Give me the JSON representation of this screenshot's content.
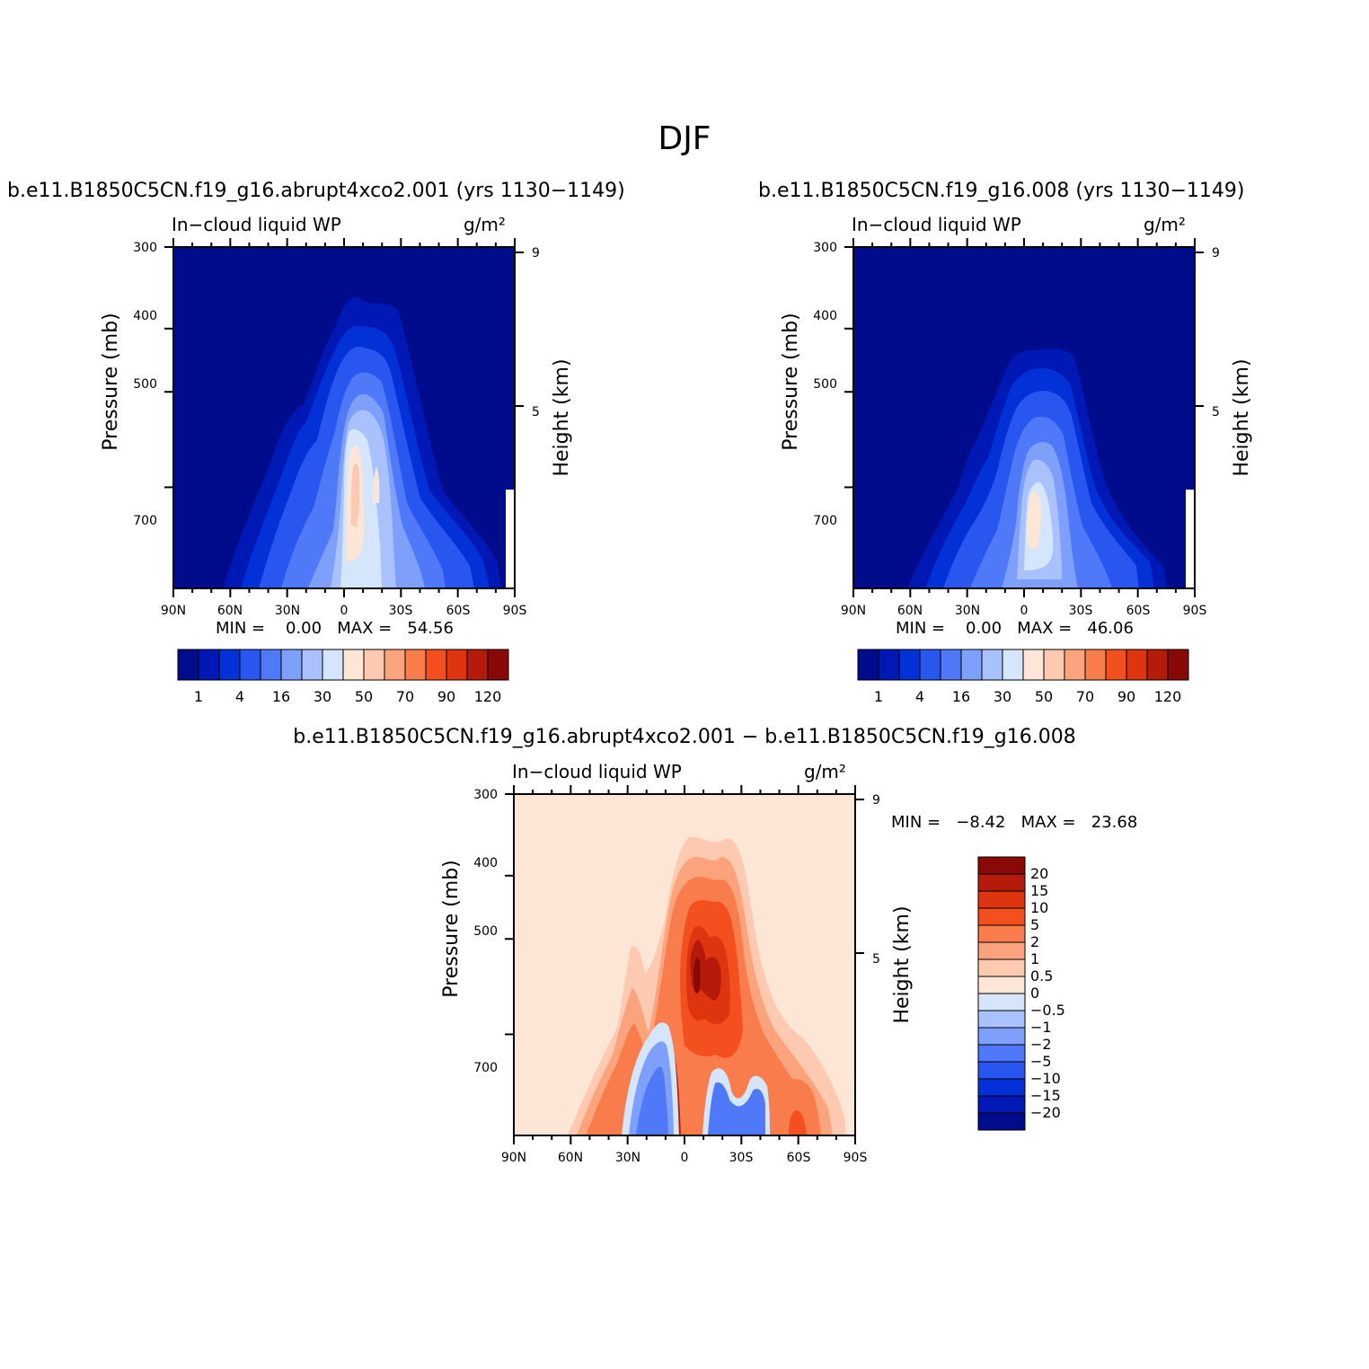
{
  "page": {
    "title": "DJF"
  },
  "panels": [
    {
      "title": "b.e11.B1850C5CN.f19_g16.abrupt4xco2.001 (yrs 1130−1149)",
      "variable": "In−cloud liquid WP",
      "units": "g/m²",
      "min_label": "MIN =",
      "min_value": "0.00",
      "max_label": "MAX =",
      "max_value": "54.56"
    },
    {
      "title": "b.e11.B1850C5CN.f19_g16.008 (yrs 1130−1149)",
      "variable": "In−cloud liquid WP",
      "units": "g/m²",
      "min_label": "MIN =",
      "min_value": "0.00",
      "max_label": "MAX =",
      "max_value": "46.06"
    },
    {
      "title": "b.e11.B1850C5CN.f19_g16.abrupt4xco2.001 − b.e11.B1850C5CN.f19_g16.008",
      "variable": "In−cloud liquid WP",
      "units": "g/m²",
      "min_label": "MIN =",
      "min_value": "−8.42",
      "max_label": "MAX =",
      "max_value": "23.68"
    }
  ],
  "axes": {
    "xticks": [
      "90N",
      "60N",
      "30N",
      "0",
      "30S",
      "60S",
      "90S"
    ],
    "yticks": [
      "300",
      "400",
      "500",
      "700"
    ],
    "ylabel": "Pressure (mb)",
    "y2label": "Height (km)",
    "y2ticks": [
      "9",
      "5"
    ]
  },
  "colorbar_abs": {
    "labels": [
      "1",
      "4",
      "16",
      "30",
      "50",
      "70",
      "90",
      "120"
    ],
    "colors": [
      "#000c8b",
      "#0019b4",
      "#0231d8",
      "#2a56f0",
      "#4f79f9",
      "#7ea0fb",
      "#a9c2fd",
      "#d4e5fc",
      "#fde6d6",
      "#fdcab1",
      "#fba37c",
      "#f87c4c",
      "#f4501f",
      "#de3410",
      "#b41b0b",
      "#880905"
    ]
  },
  "colorbar_diff": {
    "labels": [
      "20",
      "15",
      "10",
      "5",
      "2",
      "1",
      "0.5",
      "0",
      "−0.5",
      "−1",
      "−2",
      "−5",
      "−10",
      "−15",
      "−20"
    ],
    "colors": [
      "#880905",
      "#b41b0b",
      "#de3410",
      "#f4501f",
      "#f87c4c",
      "#fba37c",
      "#fdcab1",
      "#fde6d6",
      "#d4e5fc",
      "#a9c2fd",
      "#7ea0fb",
      "#4f79f9",
      "#2a56f0",
      "#0231d8",
      "#0019b4",
      "#000c8b"
    ]
  },
  "chart_data": [
    {
      "type": "heatmap",
      "title": "b.e11.B1850C5CN.f19_g16.abrupt4xco2.001 (yrs 1130−1149)",
      "xlabel": "",
      "ylabel": "Pressure (mb)",
      "y2label": "Height (km)",
      "xlim": [
        -90,
        90
      ],
      "x_direction": "90N to 90S",
      "ylim_pressure_mb": [
        300,
        1000
      ],
      "y_scale": "log-pressure",
      "levels": [
        1,
        2,
        4,
        8,
        16,
        24,
        30,
        40,
        50,
        60,
        70,
        80,
        90,
        100,
        120
      ],
      "min": 0.0,
      "max": 54.56,
      "feature": "maximum ~54 g/m2 near 5N–10N at ~600–700 mb; cloud extends to ~380 mb over the deep tropics"
    },
    {
      "type": "heatmap",
      "title": "b.e11.B1850C5CN.f19_g16.008 (yrs 1130−1149)",
      "xlabel": "",
      "ylabel": "Pressure (mb)",
      "y2label": "Height (km)",
      "xlim": [
        -90,
        90
      ],
      "ylim_pressure_mb": [
        300,
        1000
      ],
      "y_scale": "log-pressure",
      "levels": [
        1,
        2,
        4,
        8,
        16,
        24,
        30,
        40,
        50,
        60,
        70,
        80,
        90,
        100,
        120
      ],
      "min": 0.0,
      "max": 46.06,
      "feature": "maximum ~46 g/m2 near 5N–10S at ~650–750 mb; cloud top ~450 mb"
    },
    {
      "type": "heatmap",
      "title": "b.e11.B1850C5CN.f19_g16.abrupt4xco2.001 − b.e11.B1850C5CN.f19_g16.008",
      "xlabel": "",
      "ylabel": "Pressure (mb)",
      "y2label": "Height (km)",
      "xlim": [
        -90,
        90
      ],
      "ylim_pressure_mb": [
        300,
        1000
      ],
      "y_scale": "log-pressure",
      "levels": [
        -20,
        -15,
        -10,
        -5,
        -2,
        -1,
        -0.5,
        0,
        0.5,
        1,
        2,
        5,
        10,
        15,
        20
      ],
      "min": -8.42,
      "max": 23.68,
      "feature": "positive maximum ~23 near 5S–15S at ~550–600 mb; negative bands near 5N–30N and 15S–45S below 700 mb"
    }
  ]
}
